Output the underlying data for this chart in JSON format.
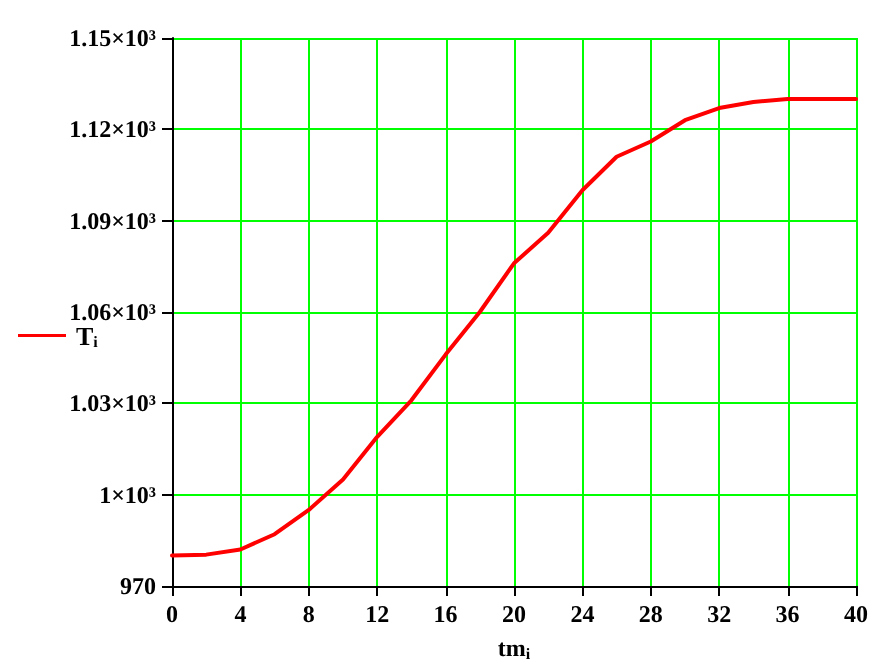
{
  "chart_data": {
    "type": "line",
    "xlabel": "tm$_{i}$",
    "legend": "left",
    "grid": true,
    "marker": "none",
    "line_style": "solid",
    "x": [
      0,
      2,
      4,
      6,
      8,
      10,
      12,
      14,
      16,
      18,
      20,
      22,
      24,
      26,
      28,
      30,
      32,
      34,
      36,
      38,
      40
    ],
    "series": [
      {
        "name": "T$_{i}$",
        "color": "#ff0000",
        "values": [
          980,
          980.3,
          982,
          987,
          995,
          1005,
          1019,
          1031,
          1046,
          1060,
          1076,
          1086,
          1100,
          1111,
          1116,
          1123,
          1127,
          1129,
          1130,
          1130,
          1130
        ]
      }
    ],
    "xlim": [
      0,
      40
    ],
    "xticks": [
      0,
      4,
      8,
      12,
      16,
      20,
      24,
      28,
      32,
      36,
      40
    ],
    "ylim": [
      970,
      1150
    ],
    "yticks": [
      970,
      {
        "value": 1000,
        "label": "1×10³"
      },
      {
        "value": 1030,
        "label": "1.03×10³"
      },
      {
        "value": 1060,
        "label": "1.06×10³"
      },
      {
        "value": 1090,
        "label": "1.09×10³"
      },
      {
        "value": 1120,
        "label": "1.12×10³"
      },
      {
        "value": 1150,
        "label": "1.15×10³"
      }
    ]
  }
}
